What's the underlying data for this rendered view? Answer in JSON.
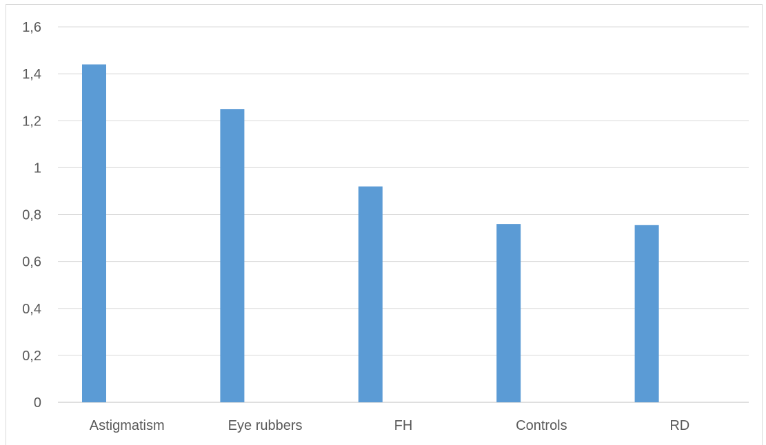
{
  "chart_data": {
    "type": "bar",
    "title": "",
    "xlabel": "",
    "ylabel": "",
    "categories": [
      "Astigmatism",
      "Eye rubbers",
      "FH",
      "Controls",
      "RD"
    ],
    "values": [
      1.44,
      1.25,
      0.92,
      0.76,
      0.755
    ],
    "ylim": [
      0,
      1.6
    ],
    "yticks": [
      0,
      0.2,
      0.4,
      0.6,
      0.8,
      1,
      1.2,
      1.4,
      1.6
    ],
    "ytick_labels": [
      "0",
      "0,2",
      "0,4",
      "0,6",
      "0,8",
      "1",
      "1,2",
      "1,4",
      "1,6"
    ],
    "grid": true,
    "legend": "none",
    "colors": {
      "bar": "#5b9bd5",
      "grid": "#d9d9d9",
      "axis": "#bfbfbf",
      "text": "#595959"
    }
  }
}
